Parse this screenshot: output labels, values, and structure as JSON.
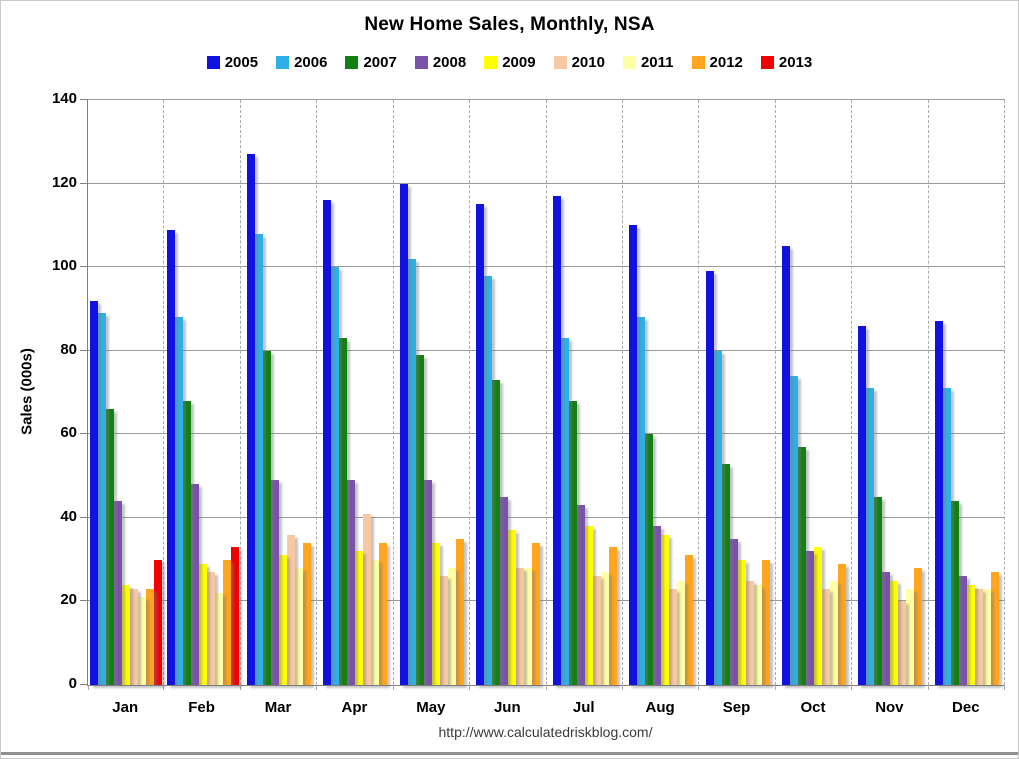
{
  "chart_data": {
    "type": "bar",
    "title": "New Home Sales, Monthly, NSA",
    "ylabel": "Sales (000s)",
    "footer_url": "http://www.calculatedriskblog.com/",
    "ylim": [
      0,
      140
    ],
    "ytick_step": 20,
    "grid": true,
    "legend_position": "top",
    "categories": [
      "Jan",
      "Feb",
      "Mar",
      "Apr",
      "May",
      "Jun",
      "Jul",
      "Aug",
      "Sep",
      "Oct",
      "Nov",
      "Dec"
    ],
    "series": [
      {
        "name": "2005",
        "color": "#1212e0",
        "values": [
          92,
          109,
          127,
          116,
          120,
          115,
          117,
          110,
          99,
          105,
          86,
          87
        ]
      },
      {
        "name": "2006",
        "color": "#2eb0e6",
        "values": [
          89,
          88,
          108,
          100,
          102,
          98,
          83,
          88,
          80,
          74,
          71,
          71
        ]
      },
      {
        "name": "2007",
        "color": "#128012",
        "values": [
          66,
          68,
          80,
          83,
          79,
          73,
          68,
          60,
          53,
          57,
          45,
          44
        ]
      },
      {
        "name": "2008",
        "color": "#7a52aa",
        "values": [
          44,
          48,
          49,
          49,
          49,
          45,
          43,
          38,
          35,
          32,
          27,
          26
        ]
      },
      {
        "name": "2009",
        "color": "#ffff00",
        "values": [
          24,
          29,
          31,
          32,
          34,
          37,
          38,
          36,
          30,
          33,
          25,
          24
        ]
      },
      {
        "name": "2010",
        "color": "#f8c8a2",
        "values": [
          23,
          27,
          36,
          41,
          26,
          28,
          26,
          23,
          25,
          23,
          20,
          23
        ]
      },
      {
        "name": "2011",
        "color": "#ffffa6",
        "values": [
          21,
          22,
          28,
          30,
          28,
          28,
          27,
          25,
          24,
          25,
          23,
          23
        ]
      },
      {
        "name": "2012",
        "color": "#ffa51e",
        "values": [
          23,
          30,
          34,
          34,
          35,
          34,
          33,
          31,
          30,
          29,
          28,
          27
        ]
      },
      {
        "name": "2013",
        "color": "#f00000",
        "values": [
          30,
          33,
          null,
          null,
          null,
          null,
          null,
          null,
          null,
          null,
          null,
          null
        ]
      }
    ]
  }
}
